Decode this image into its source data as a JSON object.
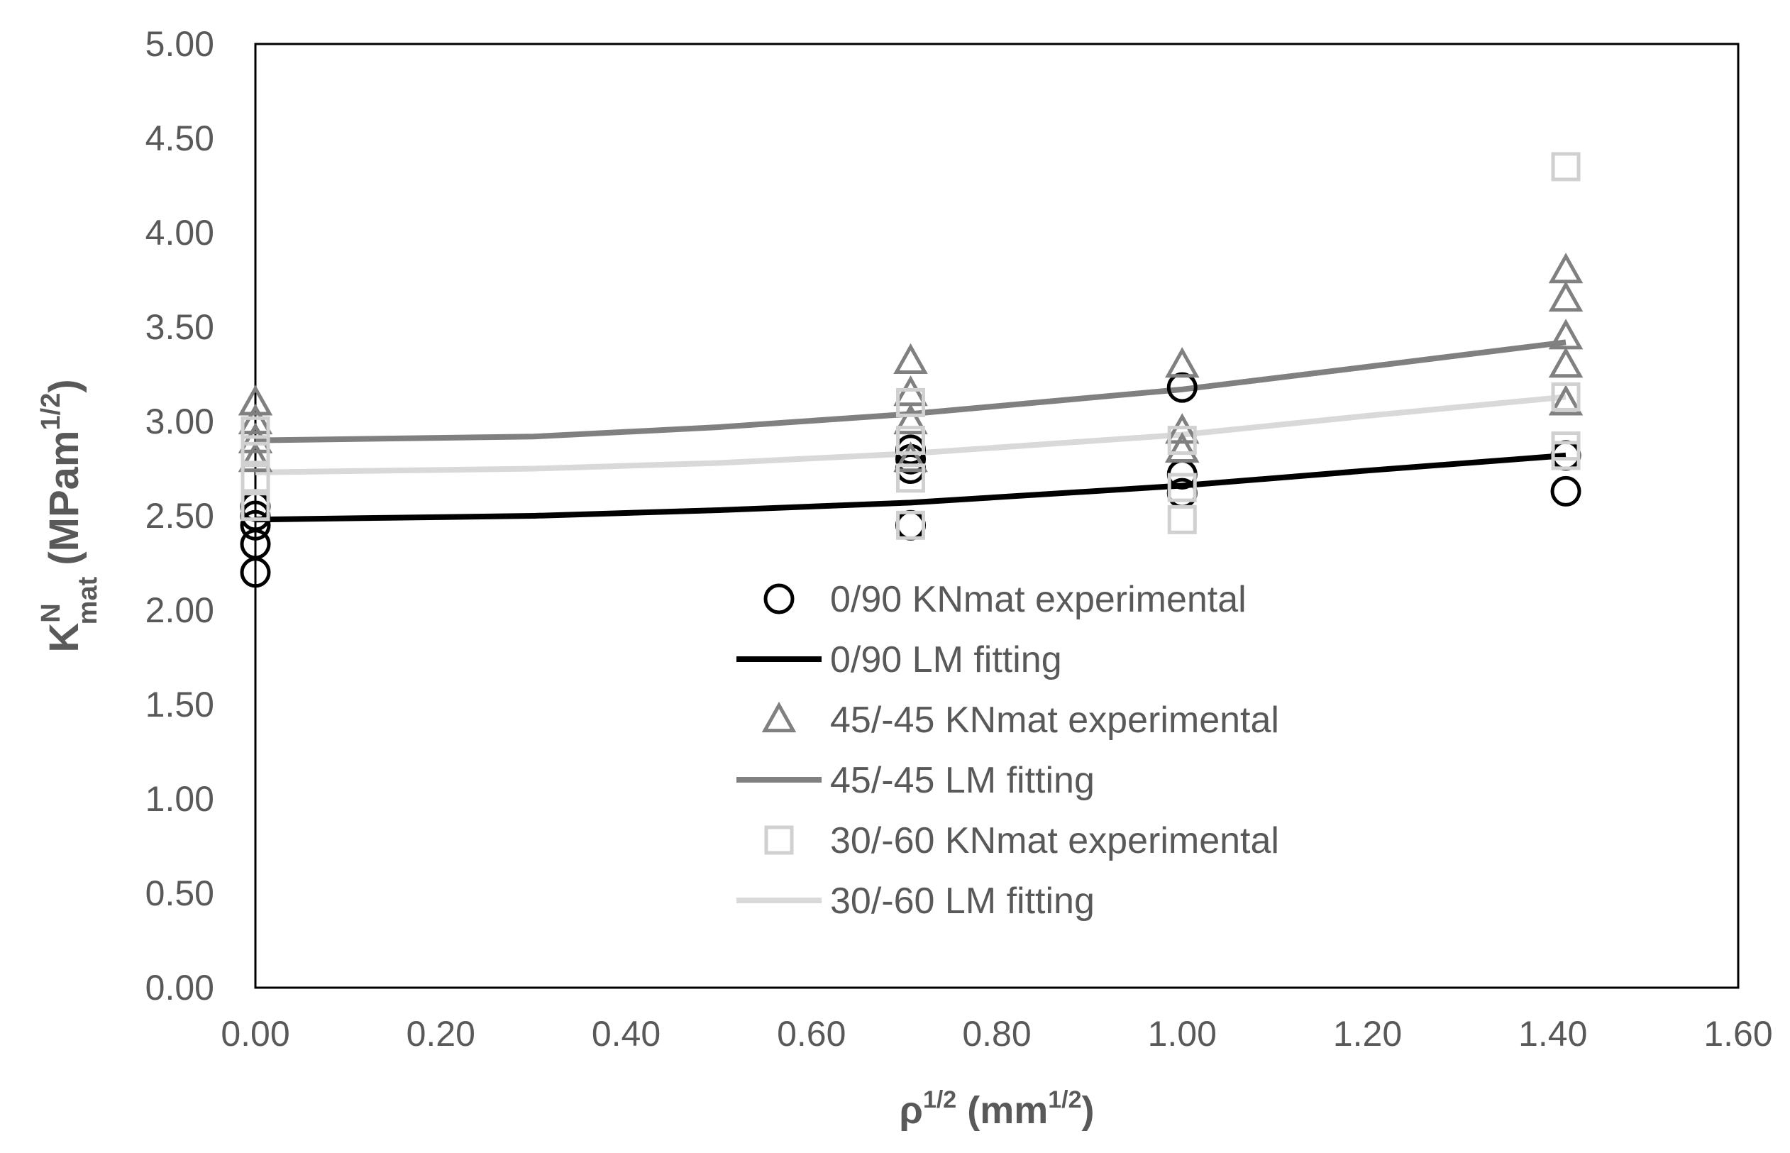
{
  "chart_data": {
    "type": "scatter",
    "title": "",
    "xlabel": {
      "base": "ρ",
      "base_sup": "1/2",
      "unit_open": " (mm",
      "unit_sup": "1/2",
      "unit_close": ")"
    },
    "ylabel": {
      "base": "K",
      "sup": "N",
      "sub": "mat",
      "unit_open": " (MPam",
      "unit_sup": "1/2",
      "unit_close": ")"
    },
    "xlim": [
      0,
      1.6
    ],
    "ylim": [
      0,
      5
    ],
    "x_ticks": [
      "0.00",
      "0.20",
      "0.40",
      "0.60",
      "0.80",
      "1.00",
      "1.20",
      "1.40",
      "1.60"
    ],
    "y_ticks": [
      "0.00",
      "0.50",
      "1.00",
      "1.50",
      "2.00",
      "2.50",
      "3.00",
      "3.50",
      "4.00",
      "4.50",
      "5.00"
    ],
    "legend_position": "center",
    "series": [
      {
        "name": "0/90 KNmat experimental",
        "kind": "scatter",
        "marker": "circle",
        "color": "#000000",
        "points": [
          [
            0,
            2.2
          ],
          [
            0,
            2.35
          ],
          [
            0,
            2.45
          ],
          [
            0,
            2.5
          ],
          [
            0,
            2.55
          ],
          [
            0.707,
            2.45
          ],
          [
            0.707,
            2.75
          ],
          [
            0.707,
            2.8
          ],
          [
            0.707,
            2.85
          ],
          [
            1.0,
            2.62
          ],
          [
            1.0,
            2.72
          ],
          [
            1.0,
            3.18
          ],
          [
            1.414,
            2.63
          ],
          [
            1.414,
            2.82
          ]
        ]
      },
      {
        "name": "0/90 LM fitting",
        "kind": "line",
        "color": "#000000",
        "points": [
          [
            0,
            2.48
          ],
          [
            0.3,
            2.5
          ],
          [
            0.5,
            2.53
          ],
          [
            0.707,
            2.57
          ],
          [
            1.0,
            2.66
          ],
          [
            1.2,
            2.74
          ],
          [
            1.414,
            2.82
          ]
        ]
      },
      {
        "name": "45/-45 KNmat experimental",
        "kind": "scatter",
        "marker": "triangle",
        "color": "#808080",
        "points": [
          [
            0,
            2.8
          ],
          [
            0,
            2.9
          ],
          [
            0,
            3.0
          ],
          [
            0,
            3.1
          ],
          [
            0.707,
            2.8
          ],
          [
            0.707,
            3.0
          ],
          [
            0.707,
            3.15
          ],
          [
            0.707,
            3.32
          ],
          [
            1.0,
            2.85
          ],
          [
            1.0,
            2.95
          ],
          [
            1.0,
            3.3
          ],
          [
            1.414,
            3.1
          ],
          [
            1.414,
            3.3
          ],
          [
            1.414,
            3.45
          ],
          [
            1.414,
            3.65
          ],
          [
            1.414,
            3.8
          ]
        ]
      },
      {
        "name": "45/-45 LM fitting",
        "kind": "line",
        "color": "#808080",
        "points": [
          [
            0,
            2.9
          ],
          [
            0.3,
            2.92
          ],
          [
            0.5,
            2.97
          ],
          [
            0.707,
            3.04
          ],
          [
            1.0,
            3.17
          ],
          [
            1.2,
            3.29
          ],
          [
            1.414,
            3.42
          ]
        ]
      },
      {
        "name": "30/-60 KNmat experimental",
        "kind": "scatter",
        "marker": "square",
        "color": "#d0d0d0",
        "points": [
          [
            0,
            2.55
          ],
          [
            0,
            2.7
          ],
          [
            0,
            2.85
          ],
          [
            0,
            2.95
          ],
          [
            0.707,
            2.45
          ],
          [
            0.707,
            2.7
          ],
          [
            0.707,
            2.9
          ],
          [
            0.707,
            3.1
          ],
          [
            1.0,
            2.48
          ],
          [
            1.0,
            2.65
          ],
          [
            1.0,
            2.9
          ],
          [
            1.414,
            2.82
          ],
          [
            1.414,
            2.87
          ],
          [
            1.414,
            3.13
          ],
          [
            1.414,
            4.35
          ]
        ]
      },
      {
        "name": "30/-60 LM fitting",
        "kind": "line",
        "color": "#d9d9d9",
        "points": [
          [
            0,
            2.73
          ],
          [
            0.3,
            2.75
          ],
          [
            0.5,
            2.78
          ],
          [
            0.707,
            2.83
          ],
          [
            1.0,
            2.93
          ],
          [
            1.2,
            3.03
          ],
          [
            1.414,
            3.13
          ]
        ]
      }
    ]
  }
}
